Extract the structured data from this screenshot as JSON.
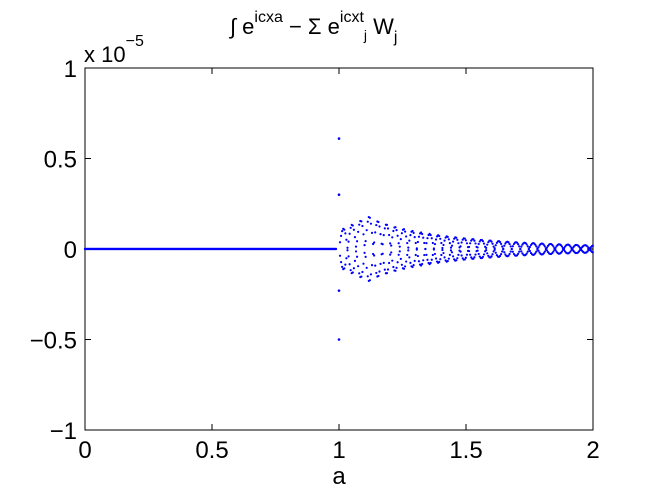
{
  "chart_data": {
    "type": "scatter",
    "title": {
      "integral": "∫",
      "base1": "e",
      "exp1": "icxa",
      "minus": "−",
      "sum": "Σ",
      "base2": "e",
      "exp2": "icxt",
      "exp2_sub": "j",
      "weight": "W",
      "weight_sub": "j"
    },
    "xlabel": "a",
    "ylabel": "",
    "y_multiplier": {
      "prefix": "x 10",
      "exponent": "−5"
    },
    "xlim": [
      0,
      2
    ],
    "ylim": [
      -1,
      1
    ],
    "y_scale_note_value": 1e-05,
    "xticks": [
      0,
      0.5,
      1,
      1.5,
      2
    ],
    "xtick_labels": [
      "0",
      "0.5",
      "1",
      "1.5",
      "2"
    ],
    "yticks": [
      -1,
      -0.5,
      0,
      0.5,
      1
    ],
    "ytick_labels": [
      "−1",
      "−0.5",
      "0",
      "0.5",
      "1"
    ],
    "grid": false,
    "marker_color": "#0000ff",
    "description_of_series": {
      "flat_segment": {
        "x_start": 0,
        "x_end": 0.99,
        "y": 0
      },
      "outliers": [
        {
          "x": 1.0,
          "y": 0.61
        },
        {
          "x": 1.0,
          "y": 0.3
        },
        {
          "x": 1.0,
          "y": -0.5
        },
        {
          "x": 1.0,
          "y": -0.23
        }
      ],
      "oscillation": {
        "x_start": 1.0,
        "x_end": 2.0,
        "envelope_peak": 0.18,
        "envelope_peak_x": 1.12,
        "envelope_end": 0.02,
        "period": 0.068
      }
    }
  }
}
